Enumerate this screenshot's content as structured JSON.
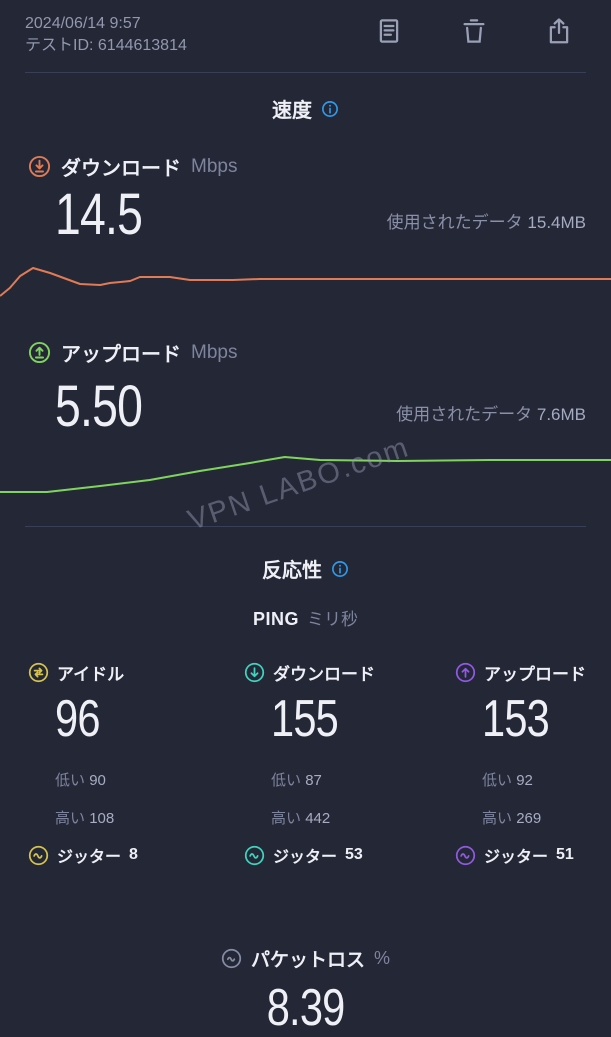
{
  "header": {
    "datetime": "2024/06/14 9:57",
    "test_id": "テストID: 6144613814"
  },
  "speed": {
    "title": "速度",
    "download": {
      "label": "ダウンロード",
      "unit": "Mbps",
      "value": "14.5",
      "data_used_label": "使用されたデータ",
      "data_used_value": "15.4MB"
    },
    "upload": {
      "label": "アップロード",
      "unit": "Mbps",
      "value": "5.50",
      "data_used_label": "使用されたデータ",
      "data_used_value": "7.6MB"
    }
  },
  "watermark": "VPN LABO.com",
  "responsiveness": {
    "title": "反応性",
    "ping_label": "PING",
    "ping_unit": "ミリ秒",
    "low_label": "低い",
    "high_label": "高い",
    "jitter_label": "ジッター",
    "columns": [
      {
        "label": "アイドル",
        "value": "96",
        "low": "90",
        "high": "108",
        "jitter": "8"
      },
      {
        "label": "ダウンロード",
        "value": "155",
        "low": "87",
        "high": "442",
        "jitter": "53"
      },
      {
        "label": "アップロード",
        "value": "153",
        "low": "92",
        "high": "269",
        "jitter": "51"
      }
    ]
  },
  "packet_loss": {
    "label": "パケットロス",
    "unit": "%",
    "value": "8.39"
  },
  "colors": {
    "background": "#242736",
    "download_accent": "#e07b55",
    "upload_accent": "#7fd55c",
    "info_blue": "#2e9be8",
    "idle_yellow": "#d4c44e",
    "ping_download_teal": "#3fd4bf",
    "ping_upload_purple": "#9259e2",
    "muted_text": "#7e849d",
    "divider": "#3a3f58"
  },
  "chart_data": [
    {
      "type": "line",
      "name": "download-sparkline",
      "title": "ダウンロード速度の推移 (14.5 Mbps)",
      "color": "#e07b55",
      "axes": "none",
      "points": [
        [
          0,
          46
        ],
        [
          0.016,
          38
        ],
        [
          0.033,
          26
        ],
        [
          0.054,
          18
        ],
        [
          0.082,
          23
        ],
        [
          0.131,
          34
        ],
        [
          0.164,
          35
        ],
        [
          0.18,
          33
        ],
        [
          0.213,
          31
        ],
        [
          0.229,
          27
        ],
        [
          0.278,
          27
        ],
        [
          0.311,
          30
        ],
        [
          0.381,
          30
        ],
        [
          0.425,
          29
        ],
        [
          0.6,
          29
        ],
        [
          1,
          29
        ]
      ],
      "viewbox_h": 48
    },
    {
      "type": "line",
      "name": "upload-sparkline",
      "title": "アップロード速度の推移 (5.50 Mbps)",
      "color": "#7fd55c",
      "axes": "none",
      "points": [
        [
          0,
          44
        ],
        [
          0.077,
          44
        ],
        [
          0.164,
          38
        ],
        [
          0.245,
          32
        ],
        [
          0.327,
          23
        ],
        [
          0.409,
          15
        ],
        [
          0.466,
          9
        ],
        [
          0.524,
          12
        ],
        [
          0.65,
          13
        ],
        [
          0.8,
          12
        ],
        [
          1,
          12
        ]
      ],
      "viewbox_h": 52
    }
  ]
}
